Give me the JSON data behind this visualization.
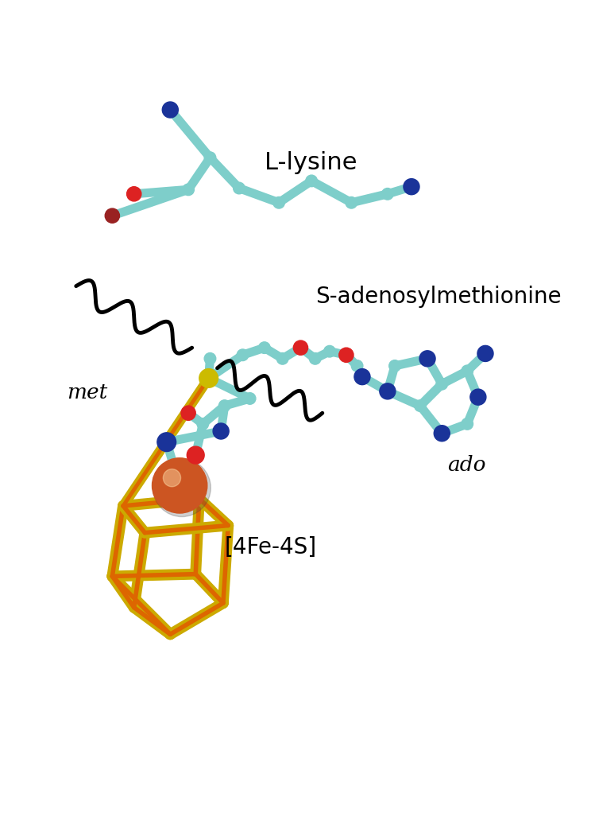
{
  "background_color": "#ffffff",
  "labels": {
    "lysine": "L-lysine",
    "sam": "S-adenosylmethionine",
    "met": "met",
    "ado": "ado",
    "cluster": "[4Fe-4S]"
  },
  "colors": {
    "carbon": "#7ECECA",
    "nitrogen": "#1A3399",
    "oxygen_bright": "#DD2222",
    "oxygen_dark": "#992222",
    "sulfur": "#CCBB00",
    "fe_sphere": "#CC5522",
    "cluster_yellow": "#CCAA00",
    "cluster_orange": "#DD6600",
    "wavy": "#111111"
  }
}
